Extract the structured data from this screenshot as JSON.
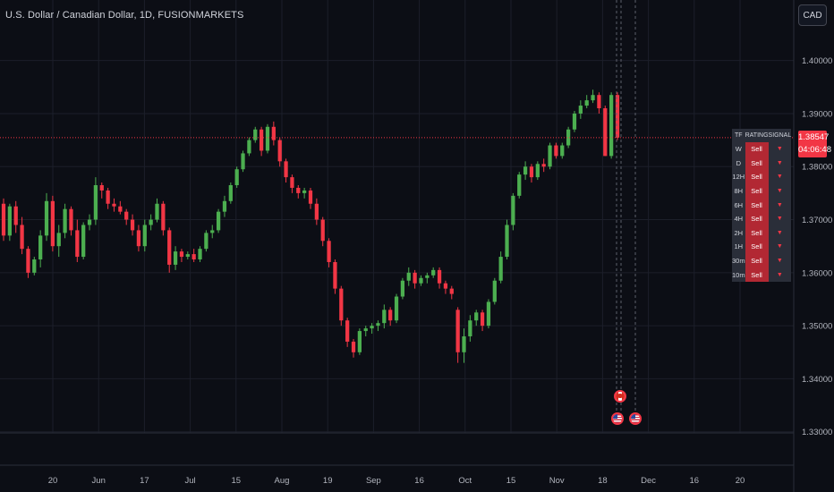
{
  "header": {
    "title": "U.S. Dollar / Canadian Dollar, 1D, FUSIONMARKETS",
    "currency_button": "CAD"
  },
  "last_price": {
    "value": "1.38547",
    "countdown": "04:06:48"
  },
  "colors": {
    "bull": "#4caf50",
    "bear": "#f23645",
    "background": "#0c0e15",
    "grid": "#1c1f2a",
    "axis_text": "#b2b5be"
  },
  "rating_table": {
    "headers": [
      "TF",
      "RATING",
      "SIGNAL"
    ],
    "rows": [
      {
        "tf": "W",
        "rating": "Sell",
        "signal": "▼"
      },
      {
        "tf": "D",
        "rating": "Sell",
        "signal": "▼"
      },
      {
        "tf": "12H",
        "rating": "Sell",
        "signal": "▼"
      },
      {
        "tf": "8H",
        "rating": "Sell",
        "signal": "▼"
      },
      {
        "tf": "6H",
        "rating": "Sell",
        "signal": "▼"
      },
      {
        "tf": "4H",
        "rating": "Sell",
        "signal": "▼"
      },
      {
        "tf": "2H",
        "rating": "Sell",
        "signal": "▼"
      },
      {
        "tf": "1H",
        "rating": "Sell",
        "signal": "▼"
      },
      {
        "tf": "30m",
        "rating": "Sell",
        "signal": "▼"
      },
      {
        "tf": "10m",
        "rating": "Sell",
        "signal": "▼"
      }
    ]
  },
  "event_flags": [
    {
      "name": "canada-flag-icon",
      "country": "CA"
    },
    {
      "name": "us-flag-icon",
      "country": "US"
    },
    {
      "name": "us-flag-icon",
      "country": "US"
    }
  ],
  "chart_data": {
    "type": "candlestick",
    "y_tick_labels": [
      "1.40000",
      "1.39000",
      "1.38000",
      "1.37000",
      "1.36000",
      "1.35000",
      "1.34000",
      "1.33000"
    ],
    "ylim": [
      1.3254,
      1.4077
    ],
    "x_tick_labels": [
      "20",
      "Jun",
      "17",
      "Jul",
      "15",
      "Aug",
      "19",
      "Sep",
      "16",
      "Oct",
      "15",
      "Nov",
      "18",
      "Dec",
      "16",
      "20"
    ],
    "grid": true,
    "last_price_line": 1.38547,
    "candles": [
      {
        "o": 1.373,
        "h": 1.374,
        "l": 1.366,
        "c": 1.367
      },
      {
        "o": 1.367,
        "h": 1.373,
        "l": 1.366,
        "c": 1.3725
      },
      {
        "o": 1.3725,
        "h": 1.3735,
        "l": 1.3675,
        "c": 1.369
      },
      {
        "o": 1.369,
        "h": 1.3705,
        "l": 1.3635,
        "c": 1.3645
      },
      {
        "o": 1.3645,
        "h": 1.365,
        "l": 1.359,
        "c": 1.36
      },
      {
        "o": 1.36,
        "h": 1.363,
        "l": 1.3595,
        "c": 1.3625
      },
      {
        "o": 1.3625,
        "h": 1.368,
        "l": 1.361,
        "c": 1.367
      },
      {
        "o": 1.367,
        "h": 1.375,
        "l": 1.366,
        "c": 1.3735
      },
      {
        "o": 1.3735,
        "h": 1.3745,
        "l": 1.364,
        "c": 1.365
      },
      {
        "o": 1.365,
        "h": 1.369,
        "l": 1.363,
        "c": 1.3675
      },
      {
        "o": 1.3675,
        "h": 1.373,
        "l": 1.3665,
        "c": 1.372
      },
      {
        "o": 1.372,
        "h": 1.3725,
        "l": 1.367,
        "c": 1.368
      },
      {
        "o": 1.368,
        "h": 1.37,
        "l": 1.362,
        "c": 1.363
      },
      {
        "o": 1.363,
        "h": 1.3695,
        "l": 1.3625,
        "c": 1.369
      },
      {
        "o": 1.369,
        "h": 1.371,
        "l": 1.368,
        "c": 1.37
      },
      {
        "o": 1.37,
        "h": 1.378,
        "l": 1.369,
        "c": 1.3765
      },
      {
        "o": 1.3765,
        "h": 1.377,
        "l": 1.374,
        "c": 1.3755
      },
      {
        "o": 1.3755,
        "h": 1.376,
        "l": 1.372,
        "c": 1.373
      },
      {
        "o": 1.373,
        "h": 1.374,
        "l": 1.3715,
        "c": 1.3725
      },
      {
        "o": 1.3725,
        "h": 1.3735,
        "l": 1.371,
        "c": 1.3715
      },
      {
        "o": 1.3715,
        "h": 1.372,
        "l": 1.369,
        "c": 1.37
      },
      {
        "o": 1.37,
        "h": 1.371,
        "l": 1.367,
        "c": 1.368
      },
      {
        "o": 1.368,
        "h": 1.369,
        "l": 1.364,
        "c": 1.365
      },
      {
        "o": 1.365,
        "h": 1.37,
        "l": 1.364,
        "c": 1.369
      },
      {
        "o": 1.369,
        "h": 1.371,
        "l": 1.368,
        "c": 1.37
      },
      {
        "o": 1.37,
        "h": 1.374,
        "l": 1.3695,
        "c": 1.373
      },
      {
        "o": 1.373,
        "h": 1.3735,
        "l": 1.367,
        "c": 1.368
      },
      {
        "o": 1.368,
        "h": 1.3685,
        "l": 1.36,
        "c": 1.3615
      },
      {
        "o": 1.3615,
        "h": 1.365,
        "l": 1.3605,
        "c": 1.364
      },
      {
        "o": 1.364,
        "h": 1.3645,
        "l": 1.362,
        "c": 1.363
      },
      {
        "o": 1.363,
        "h": 1.364,
        "l": 1.3625,
        "c": 1.3635
      },
      {
        "o": 1.3635,
        "h": 1.3645,
        "l": 1.362,
        "c": 1.3625
      },
      {
        "o": 1.3625,
        "h": 1.365,
        "l": 1.362,
        "c": 1.3645
      },
      {
        "o": 1.3645,
        "h": 1.368,
        "l": 1.364,
        "c": 1.3675
      },
      {
        "o": 1.3675,
        "h": 1.369,
        "l": 1.3665,
        "c": 1.368
      },
      {
        "o": 1.368,
        "h": 1.372,
        "l": 1.3675,
        "c": 1.3715
      },
      {
        "o": 1.3715,
        "h": 1.3745,
        "l": 1.3705,
        "c": 1.3735
      },
      {
        "o": 1.3735,
        "h": 1.377,
        "l": 1.373,
        "c": 1.3765
      },
      {
        "o": 1.3765,
        "h": 1.38,
        "l": 1.376,
        "c": 1.3795
      },
      {
        "o": 1.3795,
        "h": 1.383,
        "l": 1.379,
        "c": 1.3825
      },
      {
        "o": 1.3825,
        "h": 1.3855,
        "l": 1.382,
        "c": 1.385
      },
      {
        "o": 1.385,
        "h": 1.3875,
        "l": 1.3845,
        "c": 1.387
      },
      {
        "o": 1.387,
        "h": 1.3875,
        "l": 1.382,
        "c": 1.383
      },
      {
        "o": 1.383,
        "h": 1.388,
        "l": 1.3825,
        "c": 1.3875
      },
      {
        "o": 1.3875,
        "h": 1.3885,
        "l": 1.384,
        "c": 1.385
      },
      {
        "o": 1.385,
        "h": 1.3855,
        "l": 1.38,
        "c": 1.381
      },
      {
        "o": 1.381,
        "h": 1.3815,
        "l": 1.377,
        "c": 1.378
      },
      {
        "o": 1.378,
        "h": 1.3785,
        "l": 1.375,
        "c": 1.376
      },
      {
        "o": 1.376,
        "h": 1.3765,
        "l": 1.374,
        "c": 1.375
      },
      {
        "o": 1.375,
        "h": 1.376,
        "l": 1.374,
        "c": 1.3755
      },
      {
        "o": 1.3755,
        "h": 1.376,
        "l": 1.372,
        "c": 1.373
      },
      {
        "o": 1.373,
        "h": 1.374,
        "l": 1.369,
        "c": 1.37
      },
      {
        "o": 1.37,
        "h": 1.3705,
        "l": 1.365,
        "c": 1.366
      },
      {
        "o": 1.366,
        "h": 1.3665,
        "l": 1.361,
        "c": 1.362
      },
      {
        "o": 1.362,
        "h": 1.3625,
        "l": 1.356,
        "c": 1.357
      },
      {
        "o": 1.357,
        "h": 1.3575,
        "l": 1.35,
        "c": 1.351
      },
      {
        "o": 1.351,
        "h": 1.3515,
        "l": 1.346,
        "c": 1.347
      },
      {
        "o": 1.347,
        "h": 1.3475,
        "l": 1.344,
        "c": 1.345
      },
      {
        "o": 1.345,
        "h": 1.3495,
        "l": 1.3445,
        "c": 1.349
      },
      {
        "o": 1.349,
        "h": 1.35,
        "l": 1.348,
        "c": 1.3495
      },
      {
        "o": 1.3495,
        "h": 1.3505,
        "l": 1.3485,
        "c": 1.35
      },
      {
        "o": 1.35,
        "h": 1.351,
        "l": 1.349,
        "c": 1.3505
      },
      {
        "o": 1.3505,
        "h": 1.354,
        "l": 1.3495,
        "c": 1.353
      },
      {
        "o": 1.353,
        "h": 1.3535,
        "l": 1.35,
        "c": 1.351
      },
      {
        "o": 1.351,
        "h": 1.356,
        "l": 1.3505,
        "c": 1.3555
      },
      {
        "o": 1.3555,
        "h": 1.359,
        "l": 1.355,
        "c": 1.3585
      },
      {
        "o": 1.3585,
        "h": 1.361,
        "l": 1.3575,
        "c": 1.36
      },
      {
        "o": 1.36,
        "h": 1.3605,
        "l": 1.357,
        "c": 1.358
      },
      {
        "o": 1.358,
        "h": 1.3595,
        "l": 1.3575,
        "c": 1.359
      },
      {
        "o": 1.359,
        "h": 1.36,
        "l": 1.358,
        "c": 1.3595
      },
      {
        "o": 1.3595,
        "h": 1.361,
        "l": 1.359,
        "c": 1.3605
      },
      {
        "o": 1.3605,
        "h": 1.361,
        "l": 1.357,
        "c": 1.358
      },
      {
        "o": 1.358,
        "h": 1.3585,
        "l": 1.356,
        "c": 1.357
      },
      {
        "o": 1.357,
        "h": 1.3575,
        "l": 1.355,
        "c": 1.356
      },
      {
        "o": 1.353,
        "h": 1.3535,
        "l": 1.343,
        "c": 1.345
      },
      {
        "o": 1.345,
        "h": 1.3495,
        "l": 1.343,
        "c": 1.348
      },
      {
        "o": 1.348,
        "h": 1.352,
        "l": 1.347,
        "c": 1.351
      },
      {
        "o": 1.351,
        "h": 1.353,
        "l": 1.35,
        "c": 1.3525
      },
      {
        "o": 1.3525,
        "h": 1.353,
        "l": 1.349,
        "c": 1.35
      },
      {
        "o": 1.35,
        "h": 1.355,
        "l": 1.3495,
        "c": 1.3545
      },
      {
        "o": 1.3545,
        "h": 1.359,
        "l": 1.354,
        "c": 1.3585
      },
      {
        "o": 1.3585,
        "h": 1.364,
        "l": 1.358,
        "c": 1.363
      },
      {
        "o": 1.363,
        "h": 1.37,
        "l": 1.3625,
        "c": 1.369
      },
      {
        "o": 1.369,
        "h": 1.375,
        "l": 1.368,
        "c": 1.3745
      },
      {
        "o": 1.3745,
        "h": 1.379,
        "l": 1.374,
        "c": 1.3785
      },
      {
        "o": 1.3785,
        "h": 1.381,
        "l": 1.3775,
        "c": 1.38
      },
      {
        "o": 1.38,
        "h": 1.3805,
        "l": 1.377,
        "c": 1.378
      },
      {
        "o": 1.378,
        "h": 1.381,
        "l": 1.3775,
        "c": 1.3805
      },
      {
        "o": 1.3805,
        "h": 1.3815,
        "l": 1.379,
        "c": 1.38
      },
      {
        "o": 1.38,
        "h": 1.3845,
        "l": 1.3795,
        "c": 1.384
      },
      {
        "o": 1.384,
        "h": 1.3845,
        "l": 1.3815,
        "c": 1.382
      },
      {
        "o": 1.382,
        "h": 1.3845,
        "l": 1.3815,
        "c": 1.384
      },
      {
        "o": 1.384,
        "h": 1.3875,
        "l": 1.3835,
        "c": 1.387
      },
      {
        "o": 1.387,
        "h": 1.3905,
        "l": 1.3865,
        "c": 1.39
      },
      {
        "o": 1.39,
        "h": 1.3925,
        "l": 1.389,
        "c": 1.3915
      },
      {
        "o": 1.3915,
        "h": 1.3935,
        "l": 1.391,
        "c": 1.3925
      },
      {
        "o": 1.3925,
        "h": 1.3945,
        "l": 1.392,
        "c": 1.3935
      },
      {
        "o": 1.3935,
        "h": 1.394,
        "l": 1.39,
        "c": 1.391
      },
      {
        "o": 1.391,
        "h": 1.3915,
        "l": 1.382,
        "c": 1.382
      },
      {
        "o": 1.382,
        "h": 1.394,
        "l": 1.3815,
        "c": 1.3935
      },
      {
        "o": 1.3935,
        "h": 1.394,
        "l": 1.385,
        "c": 1.38547
      }
    ]
  }
}
